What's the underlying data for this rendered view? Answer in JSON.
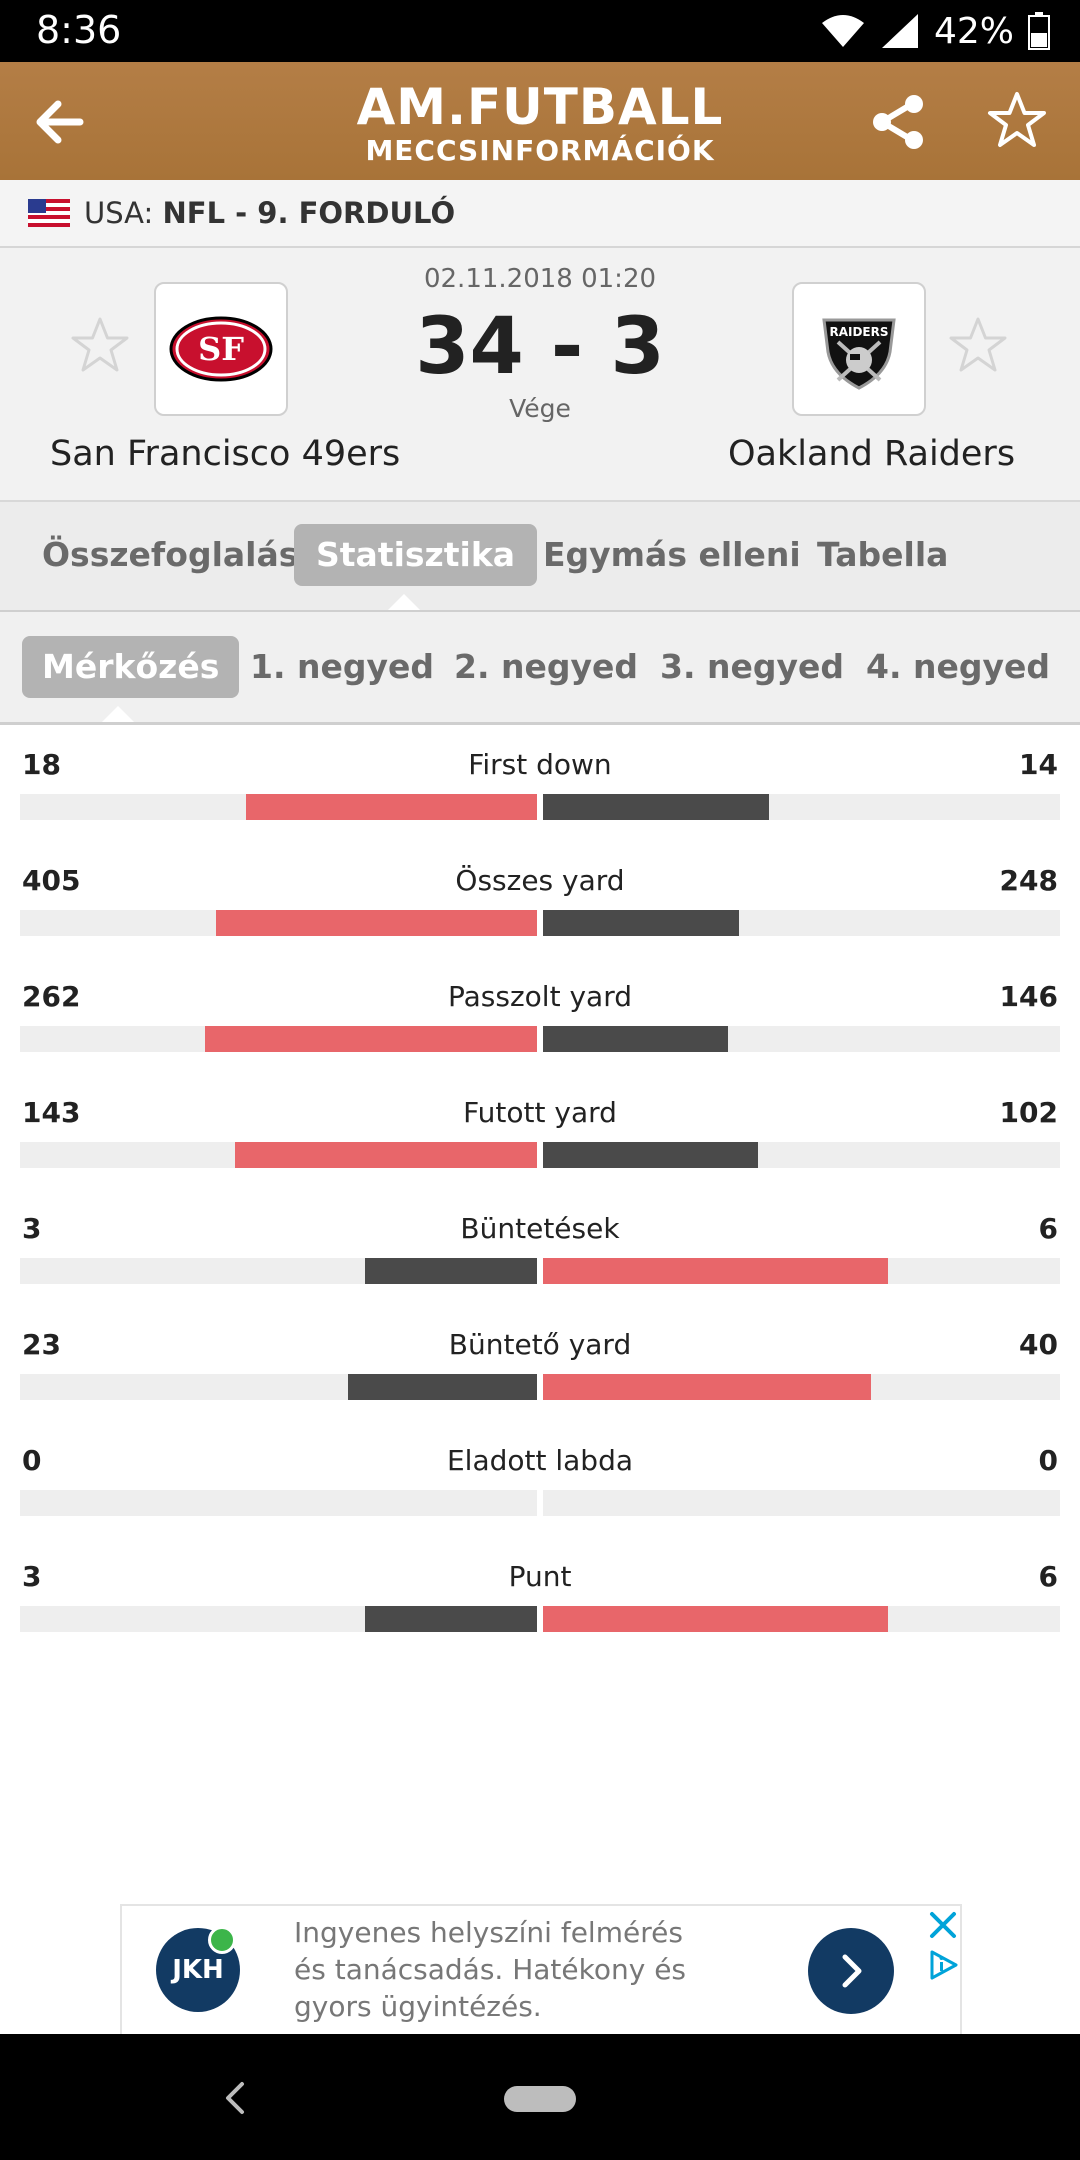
{
  "status_bar": {
    "time": "8:36",
    "battery": "42%"
  },
  "header": {
    "title": "AM.FUTBALL",
    "subtitle": "MECCSINFORMÁCIÓK"
  },
  "league": {
    "country": "USA:",
    "competition": "NFL - 9. FORDULÓ"
  },
  "match": {
    "datetime": "02.11.2018 01:20",
    "score": "34 - 3",
    "status": "Vége",
    "home_team": "San Francisco 49ers",
    "away_team": "Oakland Raiders",
    "home_logo_text": "SF",
    "away_logo_text": "RAIDERS"
  },
  "tabs": [
    {
      "label": "Összefoglalás",
      "active": false
    },
    {
      "label": "Statisztika",
      "active": true
    },
    {
      "label": "Egymás elleni",
      "active": false
    },
    {
      "label": "Tabella",
      "active": false
    }
  ],
  "subtabs": [
    {
      "label": "Mérkőzés",
      "active": true
    },
    {
      "label": "1. negyed",
      "active": false
    },
    {
      "label": "2. negyed",
      "active": false
    },
    {
      "label": "3. negyed",
      "active": false
    },
    {
      "label": "4. negyed",
      "active": false
    }
  ],
  "stats": [
    {
      "name": "First down",
      "home": "18",
      "away": "14"
    },
    {
      "name": "Összes yard",
      "home": "405",
      "away": "248"
    },
    {
      "name": "Passzolt yard",
      "home": "262",
      "away": "146"
    },
    {
      "name": "Futott yard",
      "home": "143",
      "away": "102"
    },
    {
      "name": "Büntetések",
      "home": "3",
      "away": "6"
    },
    {
      "name": "Büntető yard",
      "home": "23",
      "away": "40"
    },
    {
      "name": "Eladott labda",
      "home": "0",
      "away": "0"
    },
    {
      "name": "Punt",
      "home": "3",
      "away": "6"
    }
  ],
  "ad": {
    "logo_text": "JKH",
    "text": "Ingyenes helyszíni felmérés és tanácsadás. Hatékony és gyors ügyintézés."
  },
  "colors": {
    "header": "#a87338",
    "bar_red": "#e8666a",
    "bar_dark": "#4a4a4a",
    "ad_blue": "#123a63"
  }
}
